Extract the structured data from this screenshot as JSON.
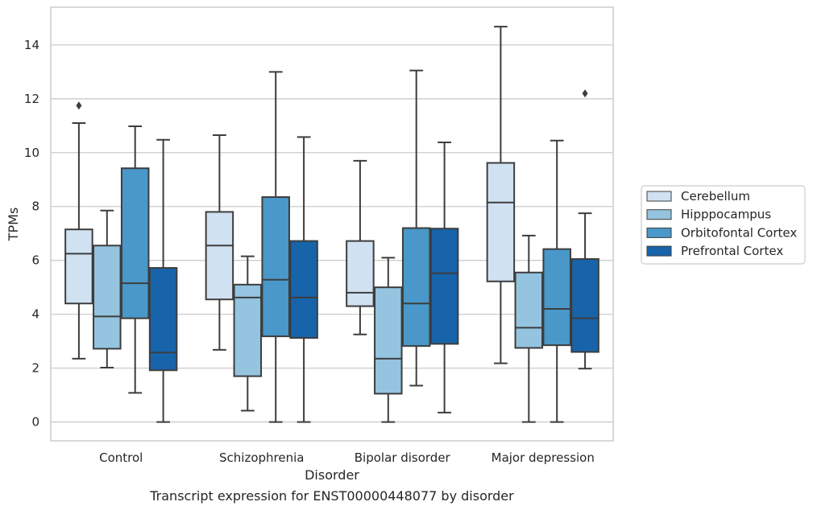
{
  "chart_data": {
    "type": "boxplot",
    "title": "",
    "caption": "Transcript expression for ENST00000448077 by disorder",
    "xlabel": "Disorder",
    "ylabel": "TPMs",
    "ylim": [
      -0.7,
      15.4
    ],
    "yticks": [
      0,
      2,
      4,
      6,
      8,
      10,
      12,
      14
    ],
    "grid": "horizontal",
    "legend_position": "right",
    "categories": [
      "Control",
      "Schizophrenia",
      "Bipolar disorder",
      "Major depression"
    ],
    "series": [
      {
        "name": "Cerebellum",
        "color": "#d0e1f2",
        "boxes": [
          {
            "whisker_low": 2.35,
            "q1": 4.4,
            "median": 6.25,
            "q3": 7.15,
            "whisker_high": 11.1,
            "outliers": [
              11.75
            ]
          },
          {
            "whisker_low": 2.68,
            "q1": 4.55,
            "median": 6.55,
            "q3": 7.8,
            "whisker_high": 10.65,
            "outliers": []
          },
          {
            "whisker_low": 3.25,
            "q1": 4.3,
            "median": 4.8,
            "q3": 6.72,
            "whisker_high": 9.7,
            "outliers": []
          },
          {
            "whisker_low": 2.18,
            "q1": 5.22,
            "median": 8.15,
            "q3": 9.62,
            "whisker_high": 14.68,
            "outliers": []
          }
        ]
      },
      {
        "name": "Hipppocampus",
        "color": "#94c4df",
        "boxes": [
          {
            "whisker_low": 2.02,
            "q1": 2.72,
            "median": 3.92,
            "q3": 6.55,
            "whisker_high": 7.85,
            "outliers": []
          },
          {
            "whisker_low": 0.42,
            "q1": 1.7,
            "median": 4.62,
            "q3": 5.1,
            "whisker_high": 6.15,
            "outliers": []
          },
          {
            "whisker_low": 0.0,
            "q1": 1.05,
            "median": 2.35,
            "q3": 5.0,
            "whisker_high": 6.1,
            "outliers": []
          },
          {
            "whisker_low": 0.0,
            "q1": 2.75,
            "median": 3.5,
            "q3": 5.55,
            "whisker_high": 6.92,
            "outliers": []
          }
        ]
      },
      {
        "name": "Orbitofontal Cortex",
        "color": "#4a98c9",
        "boxes": [
          {
            "whisker_low": 1.08,
            "q1": 3.85,
            "median": 5.15,
            "q3": 9.42,
            "whisker_high": 10.98,
            "outliers": []
          },
          {
            "whisker_low": 0.0,
            "q1": 3.18,
            "median": 5.28,
            "q3": 8.35,
            "whisker_high": 13.0,
            "outliers": []
          },
          {
            "whisker_low": 1.35,
            "q1": 2.82,
            "median": 4.4,
            "q3": 7.2,
            "whisker_high": 13.05,
            "outliers": []
          },
          {
            "whisker_low": 0.0,
            "q1": 2.85,
            "median": 4.2,
            "q3": 6.42,
            "whisker_high": 10.45,
            "outliers": []
          }
        ]
      },
      {
        "name": "Prefrontal Cortex",
        "color": "#1764ab",
        "boxes": [
          {
            "whisker_low": 0.0,
            "q1": 1.92,
            "median": 2.58,
            "q3": 5.72,
            "whisker_high": 10.48,
            "outliers": []
          },
          {
            "whisker_low": 0.0,
            "q1": 3.12,
            "median": 4.62,
            "q3": 6.72,
            "whisker_high": 10.58,
            "outliers": []
          },
          {
            "whisker_low": 0.35,
            "q1": 2.9,
            "median": 5.52,
            "q3": 7.18,
            "whisker_high": 10.38,
            "outliers": []
          },
          {
            "whisker_low": 1.98,
            "q1": 2.6,
            "median": 3.85,
            "q3": 6.05,
            "whisker_high": 7.75,
            "outliers": [
              12.2
            ]
          }
        ]
      }
    ]
  }
}
